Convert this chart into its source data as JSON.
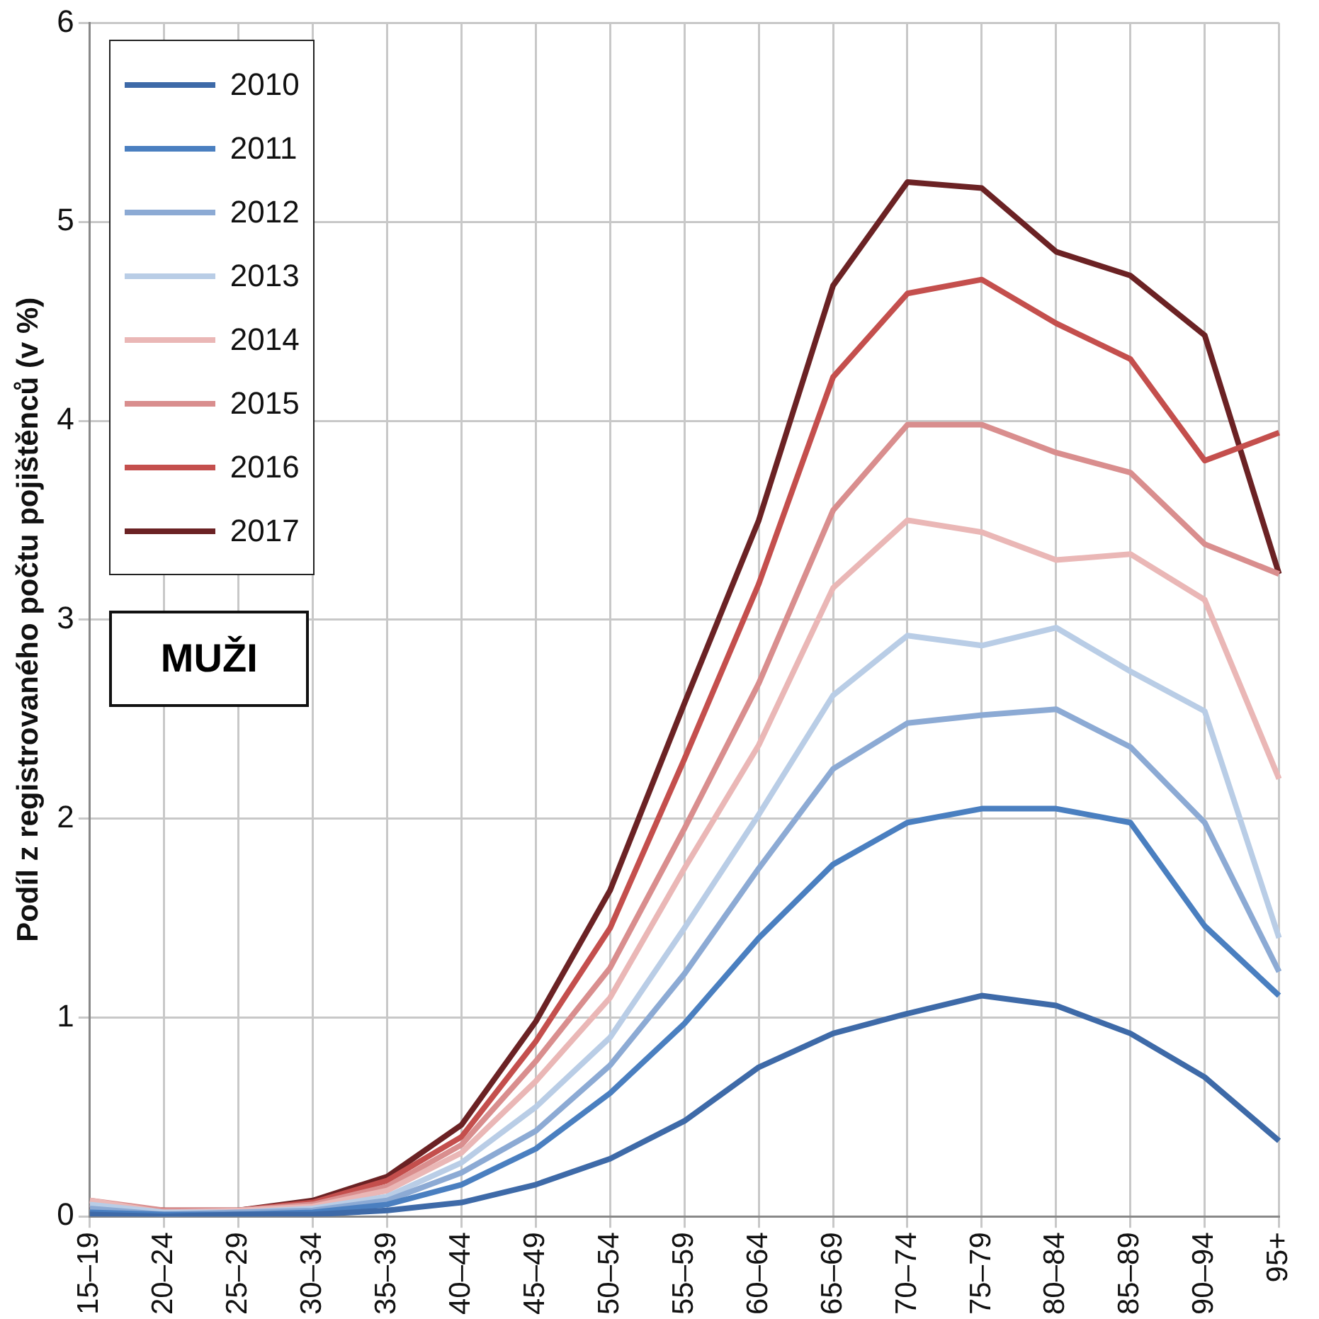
{
  "chart_data": {
    "type": "line",
    "ylabel": "Podíl z registrovaného počtu pojištěnců (v %)",
    "categories": [
      "15–19",
      "20–24",
      "25–29",
      "30–34",
      "35–39",
      "40–44",
      "45–49",
      "50–54",
      "55–59",
      "60–64",
      "65–69",
      "70–74",
      "75–79",
      "80–84",
      "85–89",
      "90–94",
      "95+"
    ],
    "series": [
      {
        "name": "2010",
        "color": "#3e6aa8",
        "values": [
          0.01,
          0.0,
          0.01,
          0.01,
          0.03,
          0.07,
          0.16,
          0.29,
          0.48,
          0.75,
          0.92,
          1.02,
          1.11,
          1.06,
          0.92,
          0.7,
          0.38
        ]
      },
      {
        "name": "2011",
        "color": "#4a7fc0",
        "values": [
          0.02,
          0.01,
          0.01,
          0.02,
          0.06,
          0.16,
          0.34,
          0.62,
          0.97,
          1.4,
          1.77,
          1.98,
          2.05,
          2.05,
          1.98,
          1.46,
          1.11
        ]
      },
      {
        "name": "2012",
        "color": "#8caad4",
        "values": [
          0.04,
          0.01,
          0.02,
          0.03,
          0.08,
          0.22,
          0.43,
          0.76,
          1.22,
          1.75,
          2.25,
          2.48,
          2.52,
          2.55,
          2.36,
          1.98,
          1.23
        ]
      },
      {
        "name": "2013",
        "color": "#b9cde6",
        "values": [
          0.06,
          0.02,
          0.02,
          0.04,
          0.1,
          0.27,
          0.55,
          0.9,
          1.45,
          2.02,
          2.62,
          2.92,
          2.87,
          2.96,
          2.74,
          2.54,
          1.4
        ]
      },
      {
        "name": "2014",
        "color": "#eab7b6",
        "values": [
          0.08,
          0.02,
          0.03,
          0.05,
          0.13,
          0.32,
          0.68,
          1.1,
          1.75,
          2.37,
          3.16,
          3.5,
          3.44,
          3.3,
          3.33,
          3.1,
          2.2
        ]
      },
      {
        "name": "2015",
        "color": "#d98e8e",
        "values": [
          0.08,
          0.03,
          0.03,
          0.06,
          0.15,
          0.36,
          0.78,
          1.25,
          1.95,
          2.68,
          3.55,
          3.98,
          3.98,
          3.84,
          3.74,
          3.38,
          3.23
        ]
      },
      {
        "name": "2016",
        "color": "#c44f4d",
        "values": [
          0.06,
          0.03,
          0.03,
          0.07,
          0.18,
          0.4,
          0.88,
          1.45,
          2.3,
          3.18,
          4.22,
          4.64,
          4.71,
          4.49,
          4.31,
          3.8,
          3.94
        ]
      },
      {
        "name": "2017",
        "color": "#6b2224",
        "values": [
          0.05,
          0.03,
          0.03,
          0.08,
          0.2,
          0.46,
          0.98,
          1.64,
          2.58,
          3.5,
          4.68,
          5.2,
          5.17,
          4.85,
          4.73,
          4.43,
          3.23
        ]
      }
    ],
    "ylim": [
      0,
      6
    ],
    "yticks": [
      0,
      1,
      2,
      3,
      4,
      5,
      6
    ],
    "grid": true,
    "legend": "top left",
    "marker": "none",
    "line_style": "solid",
    "annotations": [
      "MUŽI"
    ]
  }
}
